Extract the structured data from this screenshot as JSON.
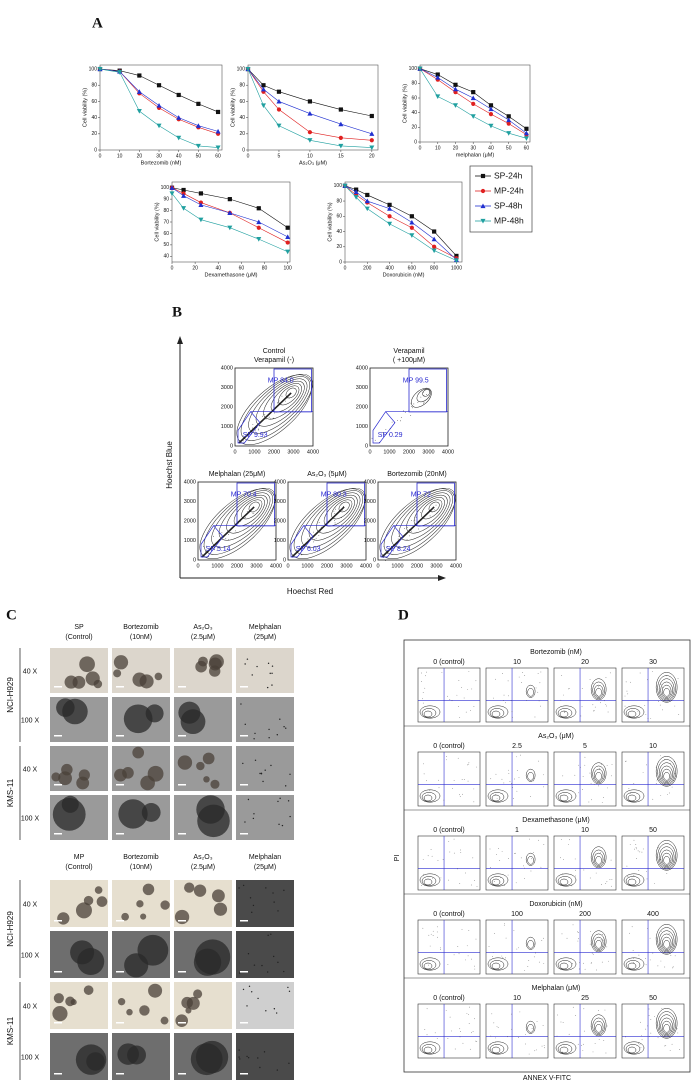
{
  "panel_a": {
    "label": "A",
    "legend": [
      {
        "name": "SP-24h",
        "color": "#111111"
      },
      {
        "name": "MP-24h",
        "color": "#e02020"
      },
      {
        "name": "SP-48h",
        "color": "#2030d0"
      },
      {
        "name": "MP-48h",
        "color": "#20a0a0"
      }
    ],
    "charts": [
      {
        "type": "line",
        "xlabel": "Bortezomib (nM)",
        "ylabel": "Cell viability (%)",
        "x": [
          0,
          10,
          20,
          30,
          40,
          50,
          60
        ],
        "xlim": [
          0,
          62
        ],
        "ylim": [
          0,
          105
        ],
        "xticks": [
          0,
          10,
          20,
          30,
          40,
          50,
          60
        ],
        "yticks": [
          0,
          20,
          40,
          60,
          80,
          100
        ],
        "series": [
          {
            "values": [
              100,
              98,
              92,
              80,
              68,
              57,
              47
            ]
          },
          {
            "values": [
              100,
              97,
              70,
              52,
              38,
              28,
              20
            ]
          },
          {
            "values": [
              100,
              97,
              72,
              55,
              40,
              30,
              23
            ]
          },
          {
            "values": [
              100,
              96,
              48,
              30,
              15,
              5,
              3
            ]
          }
        ]
      },
      {
        "type": "line",
        "xlabel": "As₂O₃ (μM)",
        "ylabel": "Cell viability (%)",
        "x": [
          0,
          2.5,
          5,
          10,
          15,
          20
        ],
        "xlim": [
          0,
          21
        ],
        "ylim": [
          0,
          105
        ],
        "xticks": [
          0,
          5,
          10,
          15,
          20
        ],
        "yticks": [
          0,
          20,
          40,
          60,
          80,
          100
        ],
        "series": [
          {
            "values": [
              100,
              80,
              72,
              60,
              50,
              42
            ]
          },
          {
            "values": [
              100,
              72,
              50,
              22,
              15,
              12
            ]
          },
          {
            "values": [
              100,
              75,
              60,
              45,
              32,
              20
            ]
          },
          {
            "values": [
              100,
              55,
              30,
              12,
              5,
              3
            ]
          }
        ]
      },
      {
        "type": "line",
        "xlabel": "melphalan (μM)",
        "ylabel": "Cell viability (%)",
        "x": [
          0,
          10,
          20,
          30,
          40,
          50,
          60
        ],
        "xlim": [
          0,
          62
        ],
        "ylim": [
          0,
          105
        ],
        "xticks": [
          0,
          10,
          20,
          30,
          40,
          50,
          60
        ],
        "yticks": [
          0,
          20,
          40,
          60,
          80,
          100
        ],
        "series": [
          {
            "values": [
              100,
              92,
              78,
              68,
              50,
              35,
              18
            ]
          },
          {
            "values": [
              100,
              85,
              68,
              52,
              38,
              25,
              10
            ]
          },
          {
            "values": [
              100,
              88,
              72,
              60,
              45,
              30,
              12
            ]
          },
          {
            "values": [
              100,
              62,
              50,
              35,
              22,
              12,
              5
            ]
          }
        ]
      },
      {
        "type": "line",
        "xlabel": "Dexamethasone (μM)",
        "ylabel": "Cell viability (%)",
        "x": [
          0,
          10,
          25,
          50,
          75,
          100
        ],
        "xlim": [
          0,
          102
        ],
        "ylim": [
          35,
          105
        ],
        "xticks": [
          0,
          20,
          40,
          60,
          80,
          100
        ],
        "yticks": [
          40,
          50,
          60,
          70,
          80,
          90,
          100
        ],
        "series": [
          {
            "values": [
              100,
              98,
              95,
              90,
              82,
              65
            ]
          },
          {
            "values": [
              100,
              95,
              87,
              78,
              65,
              52
            ]
          },
          {
            "values": [
              100,
              93,
              85,
              78,
              70,
              57
            ]
          },
          {
            "values": [
              95,
              82,
              72,
              65,
              55,
              44
            ]
          }
        ]
      },
      {
        "type": "line",
        "xlabel": "Doxorubicin (nM)",
        "ylabel": "Cell viability (%)",
        "x": [
          0,
          100,
          200,
          400,
          600,
          800,
          1000
        ],
        "xlim": [
          0,
          1050
        ],
        "ylim": [
          0,
          105
        ],
        "xticks": [
          0,
          200,
          400,
          600,
          800,
          1000
        ],
        "yticks": [
          0,
          20,
          40,
          60,
          80,
          100
        ],
        "series": [
          {
            "values": [
              100,
              95,
              88,
              75,
              60,
              40,
              8
            ]
          },
          {
            "values": [
              100,
              88,
              78,
              60,
              45,
              20,
              5
            ]
          },
          {
            "values": [
              100,
              92,
              80,
              70,
              52,
              30,
              3
            ]
          },
          {
            "values": [
              100,
              85,
              70,
              50,
              35,
              15,
              2
            ]
          }
        ]
      }
    ]
  },
  "panel_b": {
    "label": "B",
    "ylabel": "Hoechst Blue",
    "xlabel": "Hoechst Red",
    "ticks": [
      0,
      1000,
      2000,
      3000,
      4000
    ],
    "plots": [
      {
        "title": [
          "Control",
          "Verapamil (-)"
        ],
        "mp": "MP 84.0",
        "sp": "SP 9.93"
      },
      {
        "title": [
          "Verapamil",
          "( +100μM)"
        ],
        "mp": "MP 99.5",
        "sp": "SP 0.29"
      },
      {
        "title": [
          "Melphalan (25μM)"
        ],
        "mp": "MP 70.4",
        "sp": "SP 5.14"
      },
      {
        "title": [
          "As₂O₃ (5μM)"
        ],
        "mp": "MP 80.3",
        "sp": "SP 6.03"
      },
      {
        "title": [
          "Bortezomib (20nM)"
        ],
        "mp": "MP 72.",
        "sp": "SP 8.24"
      }
    ]
  },
  "panel_c": {
    "label": "C",
    "blocks": [
      {
        "headers": [
          [
            "SP",
            "(Control)"
          ],
          [
            "Bortezomib",
            "(10nM)"
          ],
          [
            "As₂O₃",
            "(2.5μM)"
          ],
          [
            "Melphalan",
            "(25μM)"
          ]
        ]
      },
      {
        "headers": [
          [
            "MP",
            "(Control)"
          ],
          [
            "Bortezomib",
            "(10nM)"
          ],
          [
            "As₂O₃",
            "(2.5μM)"
          ],
          [
            "Melphalan",
            "(25μM)"
          ]
        ]
      }
    ],
    "cell_lines": [
      "NCI-H929",
      "KMS-11"
    ],
    "magnifications": [
      "40 X",
      "100 X"
    ]
  },
  "panel_d": {
    "label": "D",
    "ylabel": "PI",
    "xlabel": "ANNEX V-FITC",
    "rows": [
      {
        "title": "Bortezomib  (nM)",
        "doses": [
          "0 (control)",
          "10",
          "20",
          "30"
        ]
      },
      {
        "title": "As₂O₃ (μM)",
        "doses": [
          "0 (control)",
          "2.5",
          "5",
          "10"
        ]
      },
      {
        "title": "Dexamethasone  (μM)",
        "doses": [
          "0 (control)",
          "1",
          "10",
          "50"
        ]
      },
      {
        "title": "Doxorubicin  (nM)",
        "doses": [
          "0 (control)",
          "100",
          "200",
          "400"
        ]
      },
      {
        "title": "Melphalan  (μM)",
        "doses": [
          "0 (control)",
          "10",
          "25",
          "50"
        ]
      }
    ]
  }
}
